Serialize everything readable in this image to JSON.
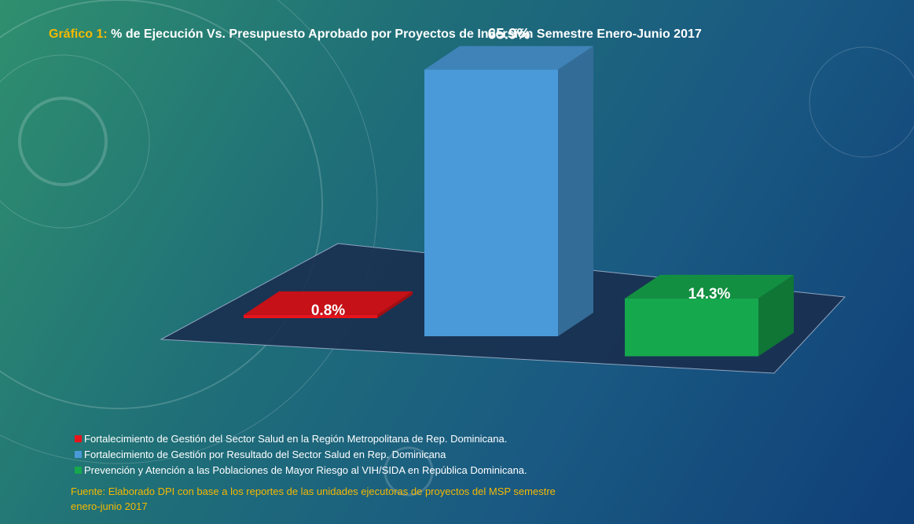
{
  "chart_data": {
    "type": "bar3d",
    "title_prefix": "Gráfico 1:",
    "title": "% de Ejecución Vs. Presupuesto Aprobado por Proyectos de Inversión Semestre Enero-Junio 2017",
    "categories": [
      "Fortalecimiento de Gestión del Sector Salud en la Región Metropolitana de Rep. Dominicana.",
      "Fortalecimiento de Gestión por Resultado del Sector Salud en Rep. Dominicana",
      "Prevención y Atención a las Poblaciones de Mayor Riesgo al VIH/SIDA en República Dominicana."
    ],
    "values": [
      0.8,
      65.9,
      14.3
    ],
    "value_labels": [
      "0.8%",
      "65.9%",
      "14.3%"
    ],
    "colors": [
      "#e8141b",
      "#4a9ad9",
      "#16a84d"
    ],
    "source": "Fuente: Elaborado DPI con base a los reportes de las unidades ejecutoras de proyectos del MSP semestre enero-junio 2017"
  }
}
